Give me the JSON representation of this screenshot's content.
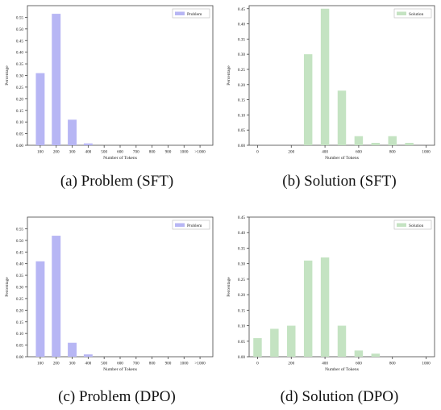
{
  "captions": [
    "(a)  Problem (SFT)",
    "(b)  Solution (SFT)",
    "(c)  Problem (DPO)",
    "(d)  Solution (DPO)"
  ],
  "chart_data": [
    {
      "type": "bar",
      "xlabel": "Number of Tokens",
      "ylabel": "Percentage",
      "legend": "top-right",
      "grid": false,
      "ylim": [
        0,
        0.6
      ],
      "yticks": [
        "0.00",
        "0.05",
        "0.10",
        "0.15",
        "0.20",
        "0.25",
        "0.30",
        "0.35",
        "0.40",
        "0.45",
        "0.50",
        "0.55"
      ],
      "categories": [
        "100",
        "200",
        "300",
        "400",
        "500",
        "600",
        "700",
        "800",
        "900",
        "1000",
        ">1000"
      ],
      "series": [
        {
          "name": "Problem",
          "color": "#b7b6f4",
          "values": [
            0.31,
            0.565,
            0.11,
            0.008,
            0,
            0,
            0,
            0,
            0,
            0,
            0
          ]
        }
      ]
    },
    {
      "type": "bar",
      "xlabel": "Number of Tokens",
      "ylabel": "Percentage",
      "legend": "top-right",
      "grid": false,
      "ylim": [
        0,
        0.46
      ],
      "yticks": [
        "0.00",
        "0.05",
        "0.10",
        "0.15",
        "0.20",
        "0.25",
        "0.30",
        "0.35",
        "0.40",
        "0.45"
      ],
      "xticks": [
        "0",
        "200",
        "400",
        "600",
        "800",
        "1000"
      ],
      "xlim": [
        -50,
        1050
      ],
      "x": [
        0,
        100,
        200,
        300,
        400,
        500,
        600,
        700,
        800,
        900,
        1000
      ],
      "series": [
        {
          "name": "Solution",
          "color": "#c4e3c2",
          "values": [
            0,
            0,
            0,
            0.3,
            0.45,
            0.18,
            0.03,
            0.008,
            0.03,
            0.008,
            0
          ]
        }
      ]
    },
    {
      "type": "bar",
      "xlabel": "Number of Tokens",
      "ylabel": "Percentage",
      "legend": "top-right",
      "grid": false,
      "ylim": [
        0,
        0.6
      ],
      "yticks": [
        "0.00",
        "0.05",
        "0.10",
        "0.15",
        "0.20",
        "0.25",
        "0.30",
        "0.35",
        "0.40",
        "0.45",
        "0.50",
        "0.55"
      ],
      "categories": [
        "100",
        "200",
        "300",
        "400",
        "500",
        "600",
        "700",
        "800",
        "900",
        "1000",
        ">1000"
      ],
      "series": [
        {
          "name": "Problem",
          "color": "#b7b6f4",
          "values": [
            0.41,
            0.52,
            0.06,
            0.01,
            0,
            0,
            0,
            0,
            0,
            0,
            0
          ]
        }
      ]
    },
    {
      "type": "bar",
      "xlabel": "Number of Tokens",
      "ylabel": "Percentage",
      "legend": "top-right",
      "grid": false,
      "ylim": [
        0,
        0.45
      ],
      "yticks": [
        "0.00",
        "0.05",
        "0.10",
        "0.15",
        "0.20",
        "0.25",
        "0.30",
        "0.35",
        "0.40",
        "0.45"
      ],
      "xticks": [
        "0",
        "200",
        "400",
        "600",
        "800",
        "1000"
      ],
      "xlim": [
        -50,
        1050
      ],
      "x": [
        0,
        100,
        200,
        300,
        400,
        500,
        600,
        700,
        800,
        900,
        1000
      ],
      "series": [
        {
          "name": "Solution",
          "color": "#c4e3c2",
          "values": [
            0.06,
            0.09,
            0.1,
            0.31,
            0.32,
            0.1,
            0.02,
            0.01,
            0,
            0,
            0
          ]
        }
      ]
    }
  ]
}
